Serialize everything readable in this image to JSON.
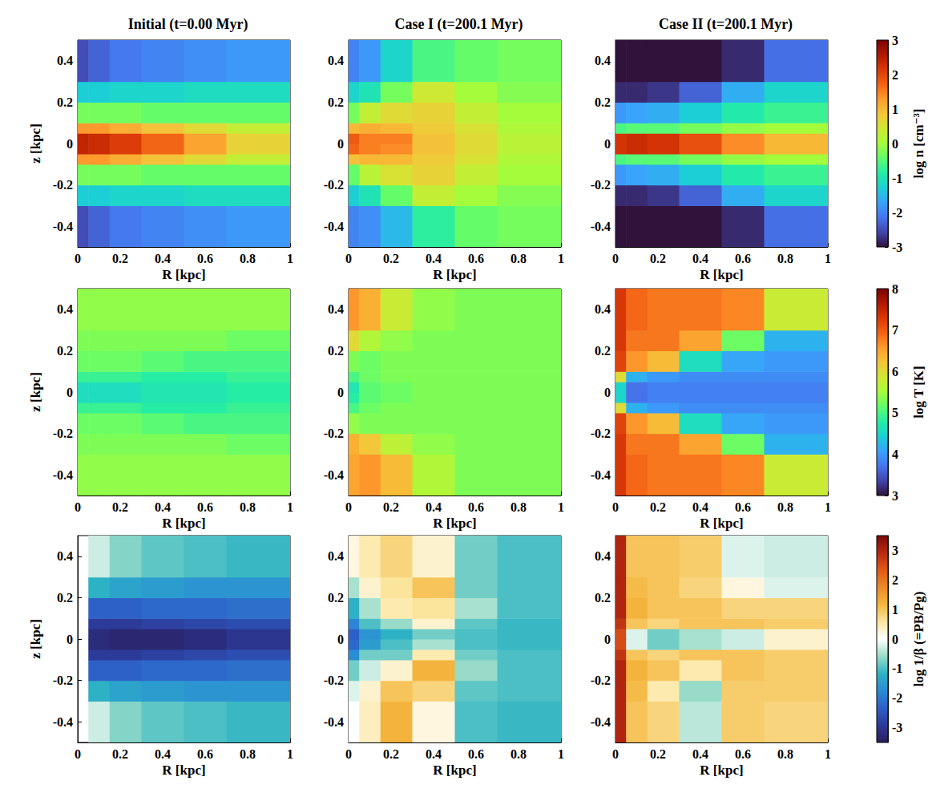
{
  "chart_data": [
    {
      "type": "heatmap",
      "title": "Initial (t=0.00 Myr)",
      "xlabel": "R [kpc]",
      "ylabel": "z [kpc]",
      "xlim": [
        0,
        1
      ],
      "xticks": [
        0,
        0.2,
        0.4,
        0.6,
        0.8,
        1
      ],
      "ylim": [
        -0.5,
        0.5
      ],
      "yticks": [
        -0.4,
        -0.2,
        0,
        0.2,
        0.4
      ],
      "clim": [
        -3,
        3
      ],
      "R_edges": [
        0,
        0.05,
        0.15,
        0.3,
        0.5,
        0.7,
        1.0
      ],
      "z_edges": [
        -0.5,
        -0.3,
        -0.2,
        -0.1,
        -0.05,
        0,
        0.05,
        0.1,
        0.2,
        0.3,
        0.5
      ],
      "cells": [
        [
          -2.5,
          -2.3,
          -2.1,
          -2.0,
          -1.9,
          -1.8
        ],
        [
          -1.3,
          -1.3,
          -1.2,
          -1.2,
          -1.1,
          -1.1
        ],
        [
          -0.3,
          -0.3,
          -0.3,
          -0.4,
          -0.4,
          -0.4
        ],
        [
          1.3,
          1.3,
          1.1,
          0.9,
          0.6,
          0.3
        ],
        [
          2.4,
          2.3,
          2.1,
          1.7,
          1.2,
          0.7
        ],
        [
          2.4,
          2.3,
          2.1,
          1.7,
          1.2,
          0.7
        ],
        [
          1.3,
          1.3,
          1.1,
          0.9,
          0.6,
          0.3
        ],
        [
          -0.3,
          -0.3,
          -0.3,
          -0.4,
          -0.4,
          -0.4
        ],
        [
          -1.3,
          -1.3,
          -1.2,
          -1.2,
          -1.1,
          -1.1
        ],
        [
          -2.5,
          -2.3,
          -2.1,
          -2.0,
          -1.9,
          -1.8
        ]
      ]
    },
    {
      "type": "heatmap",
      "title": "Case I (t=200.1 Myr)",
      "xlabel": "R [kpc]",
      "xlim": [
        0,
        1
      ],
      "xticks": [
        0,
        0.2,
        0.4,
        0.6,
        0.8,
        1
      ],
      "ylim": [
        -0.5,
        0.5
      ],
      "yticks": [
        -0.4,
        -0.2,
        0,
        0.2,
        0.4
      ],
      "clim": [
        -3,
        3
      ],
      "R_edges": [
        0,
        0.05,
        0.15,
        0.3,
        0.5,
        0.7,
        1.0
      ],
      "z_edges": [
        -0.5,
        -0.3,
        -0.2,
        -0.1,
        -0.05,
        0,
        0.05,
        0.1,
        0.2,
        0.3,
        0.5
      ],
      "cells": [
        [
          -2.0,
          -1.9,
          -1.5,
          -0.8,
          -0.4,
          -0.3
        ],
        [
          -1.3,
          -1.0,
          -0.4,
          0.3,
          0.0,
          -0.2
        ],
        [
          -0.4,
          0.2,
          0.5,
          0.7,
          0.3,
          0.0
        ],
        [
          0.9,
          1.0,
          1.0,
          0.8,
          0.5,
          0.1
        ],
        [
          1.7,
          1.5,
          1.4,
          0.9,
          0.6,
          0.2
        ],
        [
          1.8,
          1.5,
          1.5,
          0.9,
          0.6,
          0.2
        ],
        [
          1.0,
          1.1,
          1.0,
          0.8,
          0.5,
          0.1
        ],
        [
          -0.3,
          0.3,
          0.6,
          0.7,
          0.3,
          0.0
        ],
        [
          -1.2,
          -1.0,
          -0.3,
          0.4,
          0.0,
          -0.2
        ],
        [
          -2.0,
          -1.8,
          -1.2,
          -0.6,
          -0.4,
          -0.3
        ]
      ]
    },
    {
      "type": "heatmap",
      "title": "Case II (t=200.1 Myr)",
      "xlabel": "R [kpc]",
      "xlim": [
        0,
        1
      ],
      "xticks": [
        0,
        0.2,
        0.4,
        0.6,
        0.8,
        1
      ],
      "ylim": [
        -0.5,
        0.5
      ],
      "yticks": [
        -0.4,
        -0.2,
        0,
        0.2,
        0.4
      ],
      "clim": [
        -3,
        3
      ],
      "colorbar": {
        "label": "log n [cm⁻³]",
        "ticks": [
          -3,
          -2,
          -1,
          0,
          1,
          2,
          3
        ]
      },
      "R_edges": [
        0,
        0.05,
        0.15,
        0.3,
        0.5,
        0.7,
        1.0
      ],
      "z_edges": [
        -0.5,
        -0.3,
        -0.2,
        -0.1,
        -0.05,
        0,
        0.05,
        0.1,
        0.2,
        0.3,
        0.5
      ],
      "cells": [
        [
          -3.0,
          -3.0,
          -3.0,
          -3.0,
          -2.8,
          -2.2
        ],
        [
          -2.8,
          -2.8,
          -2.7,
          -2.3,
          -1.6,
          -1.2
        ],
        [
          -1.8,
          -1.7,
          -1.6,
          -1.3,
          -0.9,
          -0.7
        ],
        [
          -0.6,
          -0.5,
          -0.5,
          -0.3,
          -0.1,
          0.0
        ],
        [
          2.2,
          2.3,
          2.2,
          1.9,
          1.4,
          1.0
        ],
        [
          2.2,
          2.3,
          2.2,
          1.9,
          1.4,
          1.0
        ],
        [
          -0.6,
          -0.5,
          -0.5,
          -0.3,
          -0.1,
          0.0
        ],
        [
          -1.8,
          -1.7,
          -1.6,
          -1.3,
          -0.9,
          -0.7
        ],
        [
          -2.8,
          -2.8,
          -2.7,
          -2.3,
          -1.6,
          -1.2
        ],
        [
          -3.0,
          -3.0,
          -3.0,
          -3.0,
          -2.8,
          -2.2
        ]
      ]
    },
    {
      "type": "heatmap",
      "xlabel": "R [kpc]",
      "ylabel": "z [kpc]",
      "xlim": [
        0,
        1
      ],
      "xticks": [
        0,
        0.2,
        0.4,
        0.6,
        0.8,
        1
      ],
      "ylim": [
        -0.5,
        0.5
      ],
      "yticks": [
        -0.4,
        -0.2,
        0,
        0.2,
        0.4
      ],
      "clim": [
        3,
        8
      ],
      "R_edges": [
        0,
        0.05,
        0.15,
        0.3,
        0.5,
        0.7,
        1.0
      ],
      "z_edges": [
        -0.5,
        -0.3,
        -0.2,
        -0.1,
        -0.05,
        0,
        0.05,
        0.1,
        0.2,
        0.3,
        0.5
      ],
      "cells": [
        [
          5.4,
          5.4,
          5.4,
          5.4,
          5.4,
          5.4
        ],
        [
          5.3,
          5.3,
          5.3,
          5.3,
          5.3,
          5.2
        ],
        [
          5.2,
          5.2,
          5.2,
          5.1,
          5.0,
          5.0
        ],
        [
          4.9,
          4.9,
          4.9,
          4.8,
          4.8,
          4.9
        ],
        [
          4.6,
          4.6,
          4.6,
          4.7,
          4.7,
          4.8
        ],
        [
          4.6,
          4.6,
          4.6,
          4.7,
          4.7,
          4.8
        ],
        [
          4.9,
          4.9,
          4.9,
          4.8,
          4.8,
          4.9
        ],
        [
          5.2,
          5.2,
          5.2,
          5.1,
          5.0,
          5.0
        ],
        [
          5.3,
          5.3,
          5.3,
          5.3,
          5.3,
          5.2
        ],
        [
          5.4,
          5.4,
          5.4,
          5.4,
          5.4,
          5.4
        ]
      ]
    },
    {
      "type": "heatmap",
      "xlabel": "R [kpc]",
      "xlim": [
        0,
        1
      ],
      "xticks": [
        0,
        0.2,
        0.4,
        0.6,
        0.8,
        1
      ],
      "ylim": [
        -0.5,
        0.5
      ],
      "yticks": [
        -0.4,
        -0.2,
        0,
        0.2,
        0.4
      ],
      "clim": [
        3,
        8
      ],
      "R_edges": [
        0,
        0.05,
        0.15,
        0.3,
        0.5,
        0.7,
        1.0
      ],
      "z_edges": [
        -0.5,
        -0.3,
        -0.2,
        -0.1,
        -0.05,
        0,
        0.05,
        0.1,
        0.2,
        0.3,
        0.5
      ],
      "cells": [
        [
          6.5,
          6.6,
          6.3,
          5.6,
          5.3,
          5.3
        ],
        [
          6.4,
          6.2,
          5.7,
          5.4,
          5.3,
          5.3
        ],
        [
          5.4,
          5.3,
          5.3,
          5.3,
          5.3,
          5.3
        ],
        [
          5.0,
          5.2,
          5.3,
          5.3,
          5.3,
          5.3
        ],
        [
          4.8,
          5.1,
          5.2,
          5.3,
          5.3,
          5.3
        ],
        [
          4.7,
          5.1,
          5.2,
          5.3,
          5.3,
          5.3
        ],
        [
          5.0,
          5.2,
          5.3,
          5.3,
          5.3,
          5.3
        ],
        [
          5.3,
          5.2,
          5.3,
          5.3,
          5.3,
          5.3
        ],
        [
          6.0,
          5.6,
          5.4,
          5.3,
          5.3,
          5.3
        ],
        [
          6.6,
          6.4,
          5.8,
          5.4,
          5.3,
          5.3
        ]
      ]
    },
    {
      "type": "heatmap",
      "xlabel": "R [kpc]",
      "xlim": [
        0,
        1
      ],
      "xticks": [
        0,
        0.2,
        0.4,
        0.6,
        0.8,
        1
      ],
      "ylim": [
        -0.5,
        0.5
      ],
      "yticks": [
        -0.4,
        -0.2,
        0,
        0.2,
        0.4
      ],
      "clim": [
        3,
        8
      ],
      "colorbar": {
        "label": "log T [K]",
        "ticks": [
          3,
          4,
          5,
          6,
          7,
          8
        ]
      },
      "R_edges": [
        0,
        0.05,
        0.15,
        0.3,
        0.5,
        0.7,
        1.0
      ],
      "z_edges": [
        -0.5,
        -0.3,
        -0.2,
        -0.1,
        -0.05,
        0,
        0.05,
        0.1,
        0.2,
        0.3,
        0.5
      ],
      "cells": [
        [
          7.3,
          6.9,
          6.8,
          6.8,
          6.7,
          5.8
        ],
        [
          7.3,
          6.8,
          6.8,
          6.5,
          5.2,
          4.2
        ],
        [
          7.2,
          6.6,
          6.3,
          4.6,
          4.1,
          4.0
        ],
        [
          6.0,
          4.2,
          4.0,
          3.9,
          3.9,
          3.9
        ],
        [
          4.5,
          3.7,
          3.8,
          3.8,
          3.8,
          3.8
        ],
        [
          4.5,
          3.7,
          3.8,
          3.8,
          3.8,
          3.8
        ],
        [
          6.0,
          4.2,
          4.0,
          3.9,
          3.9,
          3.9
        ],
        [
          7.2,
          6.6,
          6.3,
          4.6,
          4.1,
          4.0
        ],
        [
          7.3,
          6.8,
          6.8,
          6.5,
          5.2,
          4.2
        ],
        [
          7.3,
          6.9,
          6.8,
          6.8,
          6.7,
          5.8
        ]
      ]
    },
    {
      "type": "heatmap",
      "xlabel": "R [kpc]",
      "ylabel": "z [kpc]",
      "xlim": [
        0,
        1
      ],
      "xticks": [
        0,
        0.2,
        0.4,
        0.6,
        0.8,
        1
      ],
      "ylim": [
        -0.5,
        0.5
      ],
      "yticks": [
        -0.4,
        -0.2,
        0,
        0.2,
        0.4
      ],
      "clim": [
        -3.5,
        3.5
      ],
      "R_edges": [
        0,
        0.05,
        0.15,
        0.3,
        0.5,
        0.7,
        1.0
      ],
      "z_edges": [
        -0.5,
        -0.3,
        -0.2,
        -0.1,
        -0.05,
        0,
        0.05,
        0.1,
        0.2,
        0.3,
        0.5
      ],
      "cells": [
        [
          null,
          -0.3,
          -0.7,
          -0.9,
          -1.0,
          -1.1
        ],
        [
          null,
          -1.2,
          -1.4,
          -1.5,
          -1.6,
          -1.6
        ],
        [
          null,
          -2.3,
          -2.3,
          -2.2,
          -2.2,
          -2.1
        ],
        [
          null,
          -2.9,
          -2.9,
          -2.8,
          -2.7,
          -2.6
        ],
        [
          null,
          -3.2,
          -3.3,
          -3.3,
          -3.2,
          -3.0
        ],
        [
          null,
          -3.2,
          -3.3,
          -3.3,
          -3.2,
          -3.0
        ],
        [
          null,
          -2.9,
          -2.9,
          -2.8,
          -2.7,
          -2.6
        ],
        [
          null,
          -2.3,
          -2.3,
          -2.2,
          -2.2,
          -2.1
        ],
        [
          null,
          -1.2,
          -1.4,
          -1.5,
          -1.6,
          -1.6
        ],
        [
          null,
          -0.3,
          -0.7,
          -0.9,
          -1.0,
          -1.1
        ]
      ]
    },
    {
      "type": "heatmap",
      "xlabel": "R [kpc]",
      "xlim": [
        0,
        1
      ],
      "xticks": [
        0,
        0.2,
        0.4,
        0.6,
        0.8,
        1
      ],
      "ylim": [
        -0.5,
        0.5
      ],
      "yticks": [
        -0.4,
        -0.2,
        0,
        0.2,
        0.4
      ],
      "clim": [
        -3.5,
        3.5
      ],
      "R_edges": [
        0,
        0.05,
        0.15,
        0.3,
        0.5,
        0.7,
        1.0
      ],
      "z_edges": [
        -0.5,
        -0.3,
        -0.2,
        -0.1,
        -0.05,
        0,
        0.05,
        0.1,
        0.2,
        0.3,
        0.5
      ],
      "cells": [
        [
          0.0,
          0.4,
          1.2,
          0.2,
          -1.0,
          -1.1
        ],
        [
          -0.2,
          0.3,
          1.0,
          0.8,
          -0.9,
          -1.0
        ],
        [
          -0.8,
          -0.3,
          0.3,
          1.2,
          -0.6,
          -1.0
        ],
        [
          -1.7,
          -0.8,
          -0.8,
          0.5,
          -0.8,
          -1.0
        ],
        [
          -2.2,
          -1.5,
          -1.0,
          -0.5,
          -1.0,
          -1.1
        ],
        [
          -2.3,
          -1.6,
          -1.2,
          -0.8,
          -1.0,
          -1.1
        ],
        [
          -1.8,
          -1.0,
          -0.6,
          0.3,
          -0.9,
          -1.1
        ],
        [
          -1.2,
          -0.5,
          0.5,
          0.6,
          -0.5,
          -1.0
        ],
        [
          -0.5,
          0.3,
          0.6,
          1.0,
          -0.8,
          -1.0
        ],
        [
          0.2,
          0.5,
          0.8,
          0.3,
          -0.8,
          -1.0
        ]
      ]
    },
    {
      "type": "heatmap",
      "xlabel": "R [kpc]",
      "xlim": [
        0,
        1
      ],
      "xticks": [
        0,
        0.2,
        0.4,
        0.6,
        0.8,
        1
      ],
      "ylim": [
        -0.5,
        0.5
      ],
      "yticks": [
        -0.4,
        -0.2,
        0,
        0.2,
        0.4
      ],
      "clim": [
        -3.5,
        3.5
      ],
      "colorbar": {
        "label": "log 1/β (=PB/Pg)",
        "ticks": [
          -3,
          -2,
          -1,
          0,
          1,
          2,
          3
        ]
      },
      "R_edges": [
        0,
        0.05,
        0.15,
        0.3,
        0.5,
        0.7,
        1.0
      ],
      "z_edges": [
        -0.5,
        -0.3,
        -0.2,
        -0.1,
        -0.05,
        0,
        0.05,
        0.1,
        0.2,
        0.3,
        0.5
      ],
      "cells": [
        [
          3.0,
          1.0,
          0.8,
          -0.4,
          0.9,
          0.8
        ],
        [
          3.0,
          1.1,
          0.5,
          -0.6,
          0.9,
          0.9
        ],
        [
          3.0,
          1.2,
          1.0,
          0.5,
          1.0,
          0.9
        ],
        [
          2.8,
          1.0,
          0.8,
          1.0,
          1.0,
          0.9
        ],
        [
          2.5,
          -0.2,
          -0.8,
          -0.5,
          -0.3,
          0.3
        ],
        [
          2.5,
          -0.2,
          -0.8,
          -0.5,
          -0.3,
          0.3
        ],
        [
          2.8,
          1.0,
          0.8,
          1.0,
          1.0,
          0.9
        ],
        [
          3.0,
          1.2,
          1.0,
          1.0,
          0.8,
          0.8
        ],
        [
          3.0,
          1.1,
          1.0,
          0.8,
          0.2,
          -0.2
        ],
        [
          3.0,
          1.0,
          1.0,
          0.9,
          -0.2,
          -0.3
        ]
      ]
    }
  ]
}
